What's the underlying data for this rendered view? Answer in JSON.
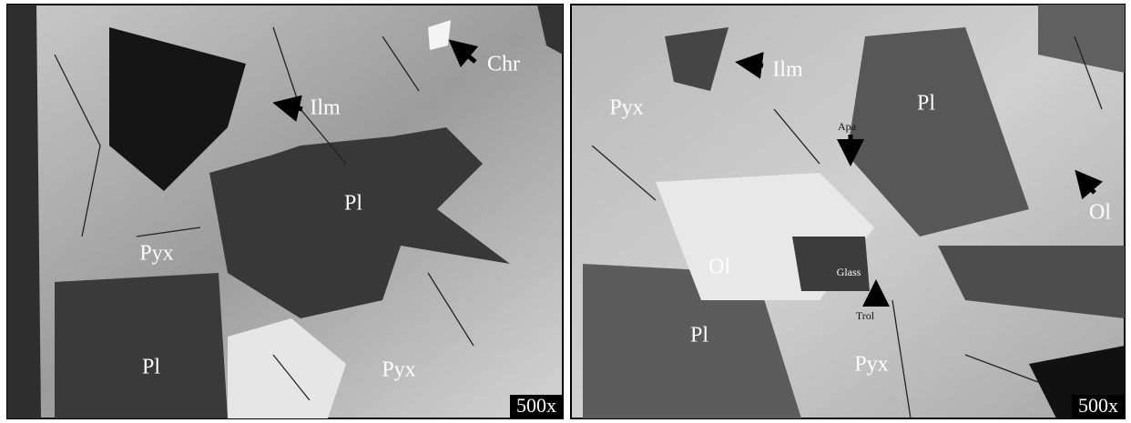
{
  "panels": [
    {
      "labels": [
        "Chr",
        "Ilm",
        "Pl",
        "Pyx",
        "Pl",
        "Pyx"
      ],
      "magnification": "500x"
    },
    {
      "labels": [
        "Ilm",
        "Pyx",
        "Pl",
        "Apa",
        "Ol",
        "Ol",
        "Glass",
        "Trol",
        "Pl",
        "Pyx"
      ],
      "magnification": "500x"
    }
  ]
}
